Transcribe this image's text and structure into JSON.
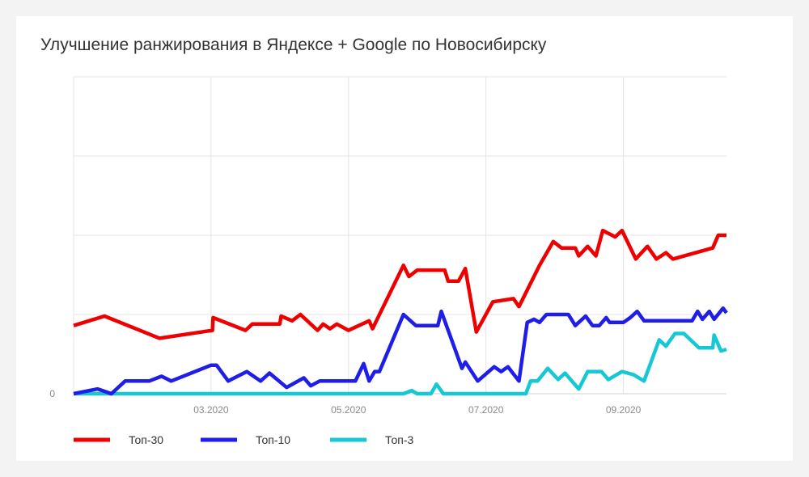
{
  "chart_data": {
    "type": "line",
    "title": "Улучшение ранжирования в Яндексе + Google по Новосибирску",
    "xlabel": "",
    "ylabel": "",
    "x_tick_labels": [
      {
        "label": "03.2020",
        "x": 2.0
      },
      {
        "label": "05.2020",
        "x": 4.0
      },
      {
        "label": "07.2020",
        "x": 6.0
      },
      {
        "label": "09.2020",
        "x": 8.0
      }
    ],
    "y_tick_labels": [
      "0"
    ],
    "xlim": [
      0,
      9.5
    ],
    "ylim": [
      0,
      20
    ],
    "y_gridlines": [
      0,
      5,
      10,
      15,
      20
    ],
    "x_gridlines": [
      0,
      2,
      4,
      6,
      8
    ],
    "grid": true,
    "legend_position": "bottom-left",
    "series": [
      {
        "name": "Топ-30",
        "color": "#ee0000",
        "points": [
          [
            0.0,
            4.3
          ],
          [
            0.45,
            4.9
          ],
          [
            1.25,
            3.5
          ],
          [
            2.02,
            4.0
          ],
          [
            2.03,
            4.8
          ],
          [
            2.5,
            4.0
          ],
          [
            2.6,
            4.4
          ],
          [
            3.0,
            4.4
          ],
          [
            3.02,
            4.9
          ],
          [
            3.18,
            4.6
          ],
          [
            3.3,
            5.0
          ],
          [
            3.55,
            4.0
          ],
          [
            3.63,
            4.4
          ],
          [
            3.73,
            4.1
          ],
          [
            3.83,
            4.4
          ],
          [
            4.0,
            4.0
          ],
          [
            4.3,
            4.6
          ],
          [
            4.35,
            4.1
          ],
          [
            4.8,
            8.1
          ],
          [
            4.88,
            7.4
          ],
          [
            5.0,
            7.8
          ],
          [
            5.4,
            7.8
          ],
          [
            5.45,
            7.1
          ],
          [
            5.6,
            7.1
          ],
          [
            5.7,
            7.9
          ],
          [
            5.86,
            3.9
          ],
          [
            6.1,
            5.8
          ],
          [
            6.4,
            6.0
          ],
          [
            6.48,
            5.5
          ],
          [
            6.78,
            8.1
          ],
          [
            6.98,
            9.6
          ],
          [
            7.1,
            9.2
          ],
          [
            7.3,
            9.2
          ],
          [
            7.35,
            8.7
          ],
          [
            7.48,
            9.3
          ],
          [
            7.6,
            8.7
          ],
          [
            7.7,
            10.3
          ],
          [
            7.88,
            9.9
          ],
          [
            7.98,
            10.3
          ],
          [
            8.18,
            8.5
          ],
          [
            8.35,
            9.3
          ],
          [
            8.48,
            8.5
          ],
          [
            8.62,
            8.9
          ],
          [
            8.72,
            8.5
          ],
          [
            9.3,
            9.2
          ],
          [
            9.38,
            10.0
          ],
          [
            9.5,
            10.0
          ]
        ]
      },
      {
        "name": "Топ-10",
        "color": "#1e1ee8",
        "points": [
          [
            0.0,
            0.0
          ],
          [
            0.35,
            0.3
          ],
          [
            0.55,
            0.0
          ],
          [
            0.75,
            0.8
          ],
          [
            1.1,
            0.8
          ],
          [
            1.28,
            1.1
          ],
          [
            1.42,
            0.8
          ],
          [
            2.0,
            1.8
          ],
          [
            2.08,
            1.8
          ],
          [
            2.25,
            0.8
          ],
          [
            2.52,
            1.4
          ],
          [
            2.72,
            0.8
          ],
          [
            2.85,
            1.3
          ],
          [
            3.1,
            0.4
          ],
          [
            3.35,
            1.0
          ],
          [
            3.45,
            0.5
          ],
          [
            3.58,
            0.8
          ],
          [
            4.0,
            0.8
          ],
          [
            4.1,
            0.8
          ],
          [
            4.22,
            1.9
          ],
          [
            4.3,
            0.8
          ],
          [
            4.38,
            1.4
          ],
          [
            4.45,
            1.4
          ],
          [
            4.8,
            5.0
          ],
          [
            4.98,
            4.3
          ],
          [
            5.3,
            4.3
          ],
          [
            5.35,
            5.2
          ],
          [
            5.65,
            1.6
          ],
          [
            5.7,
            2.0
          ],
          [
            5.88,
            0.8
          ],
          [
            6.12,
            1.7
          ],
          [
            6.22,
            1.4
          ],
          [
            6.32,
            1.7
          ],
          [
            6.48,
            0.8
          ],
          [
            6.6,
            4.5
          ],
          [
            6.7,
            4.7
          ],
          [
            6.78,
            4.5
          ],
          [
            6.88,
            5.0
          ],
          [
            7.2,
            5.0
          ],
          [
            7.3,
            4.3
          ],
          [
            7.45,
            4.9
          ],
          [
            7.55,
            4.3
          ],
          [
            7.65,
            4.3
          ],
          [
            7.75,
            4.8
          ],
          [
            7.8,
            4.5
          ],
          [
            8.0,
            4.5
          ],
          [
            8.1,
            4.8
          ],
          [
            8.2,
            5.2
          ],
          [
            8.3,
            4.6
          ],
          [
            8.5,
            4.6
          ],
          [
            9.0,
            4.6
          ],
          [
            9.08,
            5.2
          ],
          [
            9.15,
            4.7
          ],
          [
            9.25,
            5.2
          ],
          [
            9.32,
            4.7
          ],
          [
            9.45,
            5.4
          ],
          [
            9.5,
            5.1
          ]
        ]
      },
      {
        "name": "Топ-3",
        "color": "#16c8d4",
        "points": [
          [
            0.0,
            0.0
          ],
          [
            4.8,
            0.0
          ],
          [
            4.92,
            0.2
          ],
          [
            5.0,
            0.0
          ],
          [
            5.2,
            0.0
          ],
          [
            5.28,
            0.6
          ],
          [
            5.38,
            0.0
          ],
          [
            6.5,
            0.0
          ],
          [
            6.58,
            0.0
          ],
          [
            6.65,
            0.8
          ],
          [
            6.75,
            0.8
          ],
          [
            6.9,
            1.6
          ],
          [
            7.05,
            0.9
          ],
          [
            7.15,
            1.3
          ],
          [
            7.35,
            0.3
          ],
          [
            7.48,
            1.4
          ],
          [
            7.55,
            1.4
          ],
          [
            7.68,
            1.4
          ],
          [
            7.78,
            0.9
          ],
          [
            7.98,
            1.4
          ],
          [
            8.15,
            1.2
          ],
          [
            8.3,
            0.8
          ],
          [
            8.52,
            3.4
          ],
          [
            8.62,
            3.0
          ],
          [
            8.75,
            3.8
          ],
          [
            8.88,
            3.8
          ],
          [
            9.1,
            2.9
          ],
          [
            9.3,
            2.9
          ],
          [
            9.32,
            3.7
          ],
          [
            9.42,
            2.7
          ],
          [
            9.5,
            2.8
          ]
        ]
      }
    ]
  }
}
